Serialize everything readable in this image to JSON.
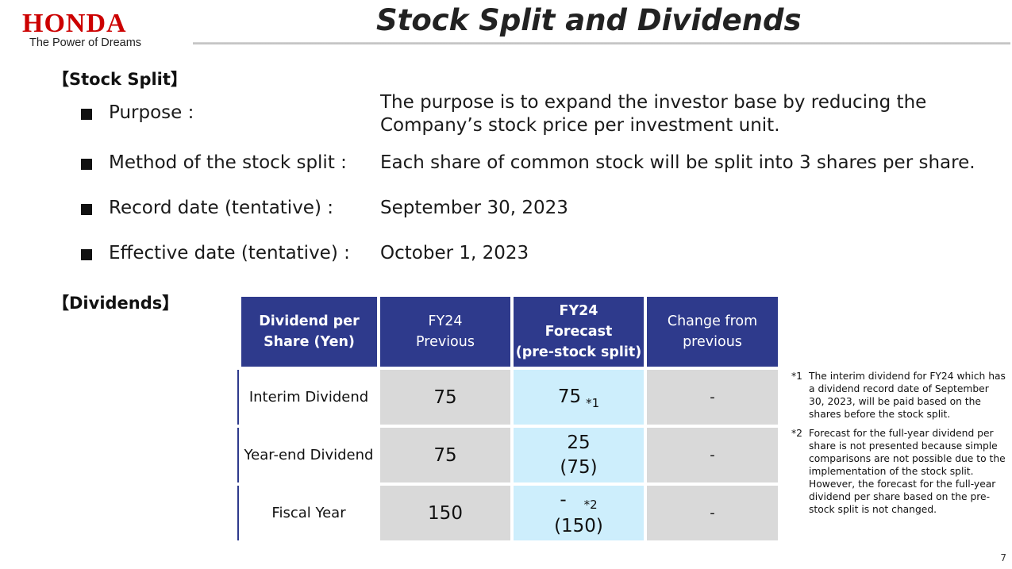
{
  "brand": {
    "name": "HONDA",
    "tagline": "The Power of Dreams",
    "color": "#cc0000"
  },
  "title": "Stock Split and Dividends",
  "stock_split": {
    "heading": "【Stock Split】",
    "items": [
      {
        "label": "Purpose :",
        "value_lines": [
          "The purpose is to expand the investor base by reducing the",
          "Company’s stock price per investment unit."
        ]
      },
      {
        "label": "Method of the stock split :",
        "value": "Each share of common stock will be split into 3 shares per share."
      },
      {
        "label": "Record date (tentative) :",
        "value": "September 30, 2023"
      },
      {
        "label": "Effective date (tentative) :",
        "value": "October 1, 2023"
      }
    ]
  },
  "dividends": {
    "heading": "【Dividends】",
    "table": {
      "headers": {
        "col0": [
          "Dividend per",
          "Share (Yen)"
        ],
        "col1": [
          "FY24",
          "Previous"
        ],
        "col2": [
          "FY24",
          "Forecast",
          "(pre-stock split)"
        ],
        "col3": [
          "Change from",
          "previous"
        ]
      },
      "rows": [
        {
          "label": "Interim Dividend",
          "previous": "75",
          "forecast_main": "75",
          "forecast_note": "*1",
          "forecast_sub": "",
          "change": "-"
        },
        {
          "label": "Year-end Dividend",
          "previous": "75",
          "forecast_main": "25",
          "forecast_note": "",
          "forecast_sub": "(75)",
          "change": "-"
        },
        {
          "label": "Fiscal Year",
          "previous": "150",
          "forecast_main": "-",
          "forecast_note": "*2",
          "forecast_sub": "(150)",
          "change": "-"
        }
      ]
    },
    "notes": [
      {
        "mark": "*1",
        "text": "The interim dividend for FY24 which has a dividend record date of September 30, 2023, will be paid based on the shares before the stock split."
      },
      {
        "mark": "*2",
        "text": "Forecast for the full-year dividend per share is not presented because simple comparisons are not possible due to the implementation of the stock split. However, the forecast for the full-year dividend per share based on the pre-stock split is not changed."
      }
    ]
  },
  "colors": {
    "header_bg": "#2e3a8c",
    "cell_gray": "#d9d9d9",
    "cell_blue": "#cdeefc"
  },
  "page_number": "7"
}
